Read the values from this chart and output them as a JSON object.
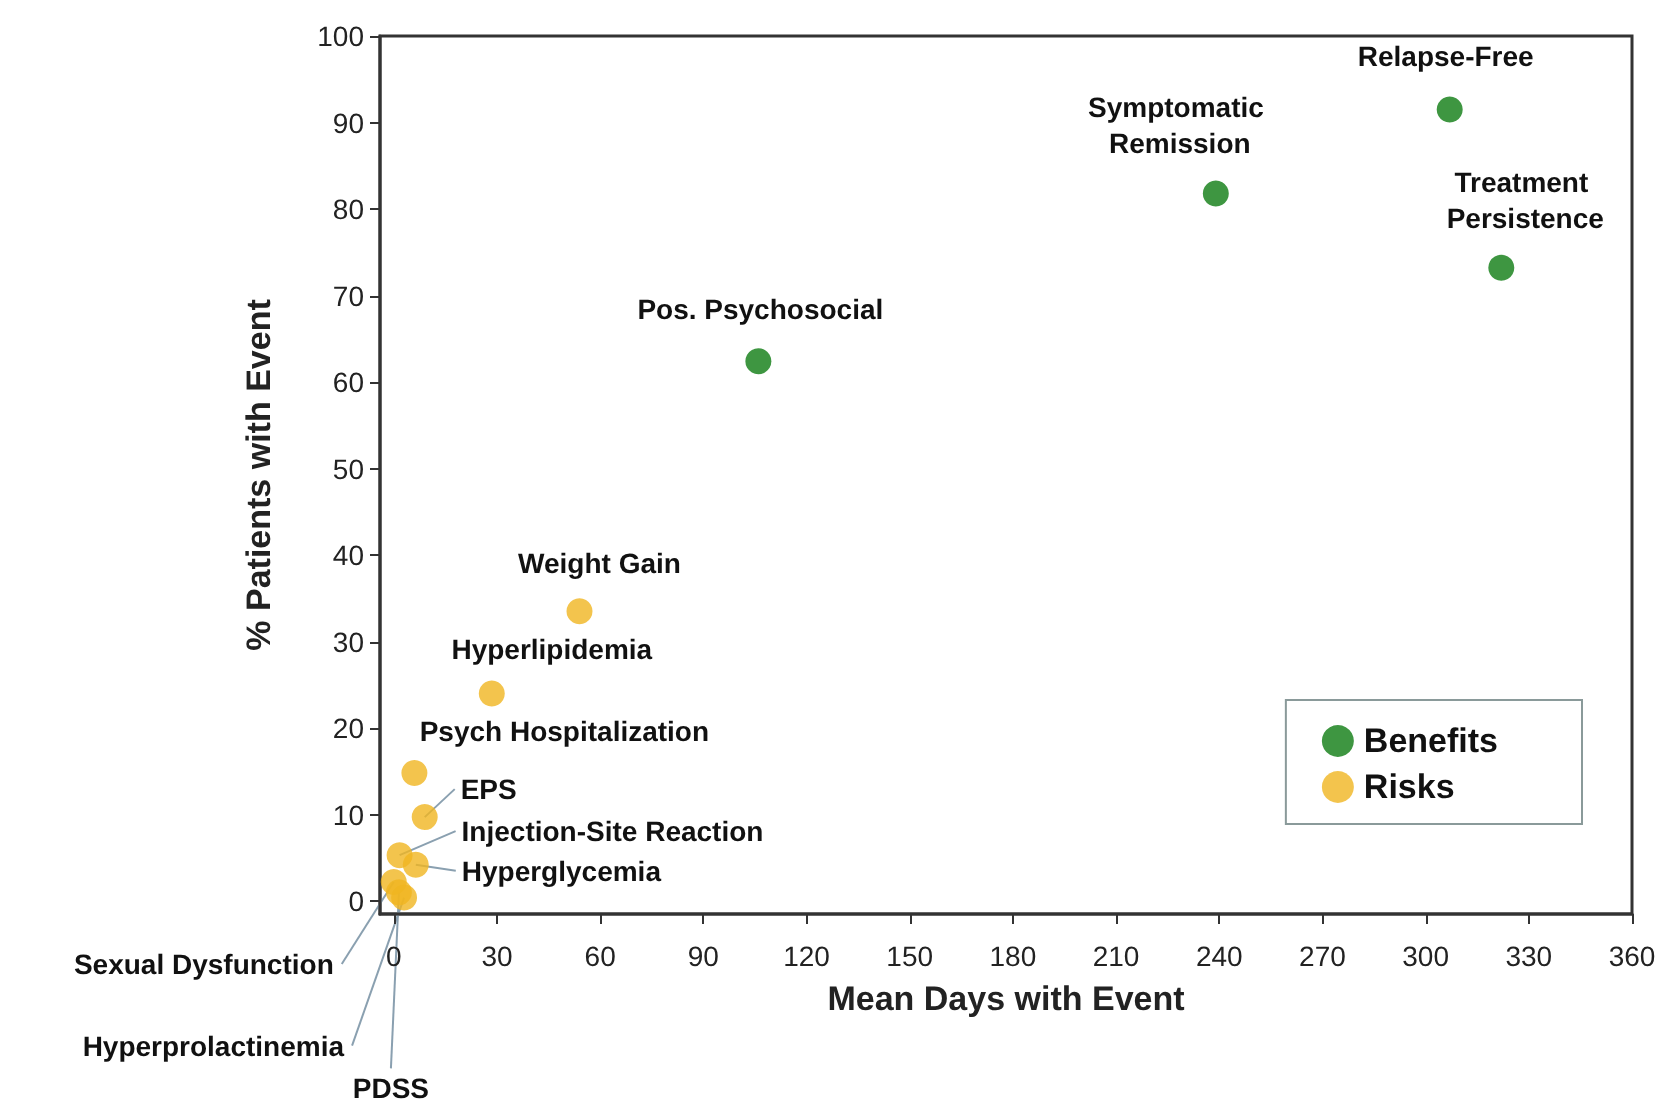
{
  "chart_data": {
    "type": "scatter",
    "xlabel": "Mean Days with Event",
    "ylabel": "% Patients with Event",
    "series": [
      {
        "name": "Benefits",
        "color": "#0e7c12",
        "x": [
          106,
          239,
          307,
          322
        ],
        "values": [
          62.4,
          81.8,
          91.5,
          73.2
        ]
      },
      {
        "name": "Risks",
        "color": "#f0b521",
        "x": [
          54,
          28.5,
          6,
          9,
          1.7,
          6.4,
          0,
          3,
          1.5
        ],
        "values": [
          33.5,
          24,
          14.8,
          9.7,
          5.3,
          4.2,
          2.2,
          0.4,
          1.0
        ]
      }
    ],
    "annotations": [
      {
        "text": "Pos. Psychosocial",
        "x": 106,
        "y": 62.4
      },
      {
        "text": "Symptomatic Remission",
        "x": 239,
        "y": 81.8
      },
      {
        "text": "Relapse-Free",
        "x": 307,
        "y": 91.5
      },
      {
        "text": "Treatment Persistence",
        "x": 322,
        "y": 73.2
      },
      {
        "text": "Weight Gain",
        "x": 54,
        "y": 33.5
      },
      {
        "text": "Hyperlipidemia",
        "x": 28.5,
        "y": 24
      },
      {
        "text": "Psych Hospitalization",
        "x": 6,
        "y": 14.8
      },
      {
        "text": "EPS",
        "x": 9,
        "y": 9.7
      },
      {
        "text": "Injection-Site Reaction",
        "x": 1.7,
        "y": 5.3
      },
      {
        "text": "Hyperglycemia",
        "x": 6.4,
        "y": 4.2
      },
      {
        "text": "Sexual Dysfunction",
        "x": 0,
        "y": 2.2
      },
      {
        "text": "Hyperprolactinemia",
        "x": 3,
        "y": 0.4
      },
      {
        "text": "PDSS",
        "x": 1.5,
        "y": 1.0
      }
    ],
    "xlim": [
      -4,
      360
    ],
    "xticks": [
      0,
      30,
      60,
      90,
      120,
      150,
      180,
      210,
      240,
      270,
      300,
      330,
      360
    ],
    "ylim": [
      -1.5,
      100
    ],
    "yticks": [
      0,
      10,
      20,
      30,
      40,
      50,
      60,
      70,
      80,
      90,
      100
    ],
    "grid": false,
    "legend": "bottom right",
    "marker": "circle"
  }
}
